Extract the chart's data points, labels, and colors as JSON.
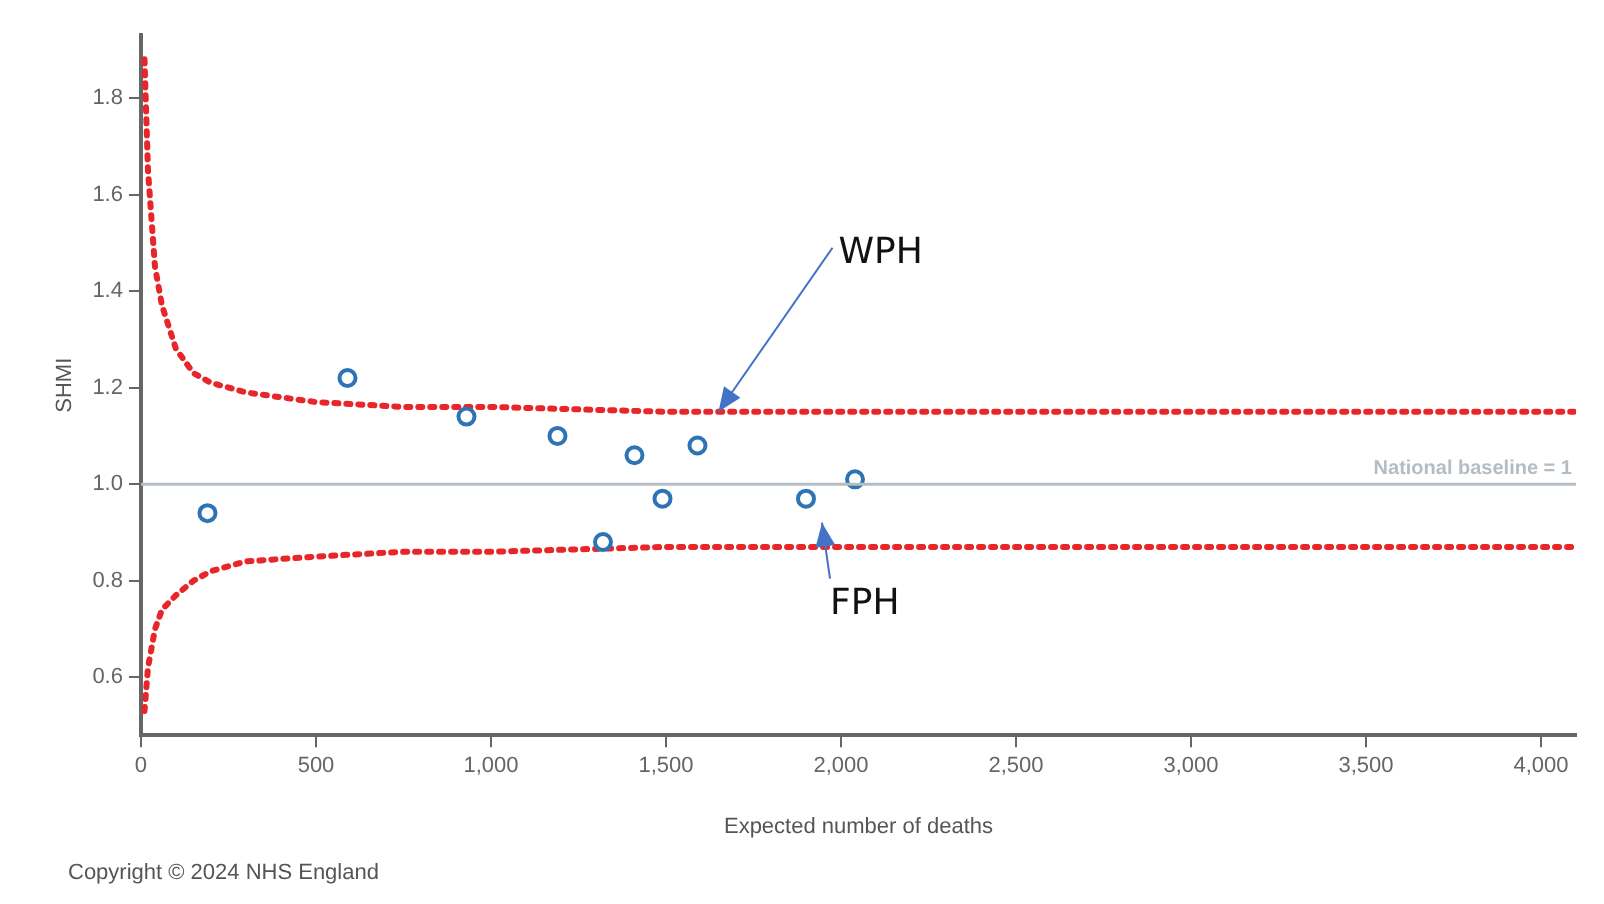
{
  "chart_data": {
    "type": "scatter",
    "xlabel": "Expected number of deaths",
    "ylabel": "SHMI",
    "xlim": [
      0,
      4100
    ],
    "ylim": [
      0.48,
      1.93
    ],
    "xticks": [
      0,
      500,
      {
        "value": 1000,
        "label": "1,000"
      },
      {
        "value": 1500,
        "label": "1,500"
      },
      {
        "value": 2000,
        "label": "2,000"
      },
      {
        "value": 2500,
        "label": "2,500"
      },
      {
        "value": 3000,
        "label": "3,000"
      },
      {
        "value": 3500,
        "label": "3,500"
      },
      {
        "value": 4000,
        "label": "4,000"
      }
    ],
    "yticks": [
      0.6,
      0.8,
      {
        "value": 1,
        "label": "1.0"
      },
      1.2,
      1.4,
      1.6,
      1.8
    ],
    "grid": false,
    "legend": false,
    "series": [
      {
        "type": "scatter",
        "marker": "circle",
        "color": "#2e74b5",
        "x": [
          190,
          590,
          930,
          1190,
          1410,
          1320,
          1490,
          1590,
          1900,
          2040
        ],
        "values": [
          0.94,
          1.22,
          1.14,
          1.1,
          1.06,
          0.88,
          0.97,
          1.08,
          0.97,
          1.01
        ]
      },
      {
        "type": "line",
        "line_style": "dotted",
        "color": "#e8262a",
        "x": [
          10,
          20,
          40,
          60,
          100,
          150,
          200,
          300,
          500,
          750,
          1000,
          1500,
          2000,
          3000,
          4100
        ],
        "values": [
          1.88,
          1.65,
          1.45,
          1.37,
          1.28,
          1.23,
          1.21,
          1.19,
          1.17,
          1.16,
          1.16,
          1.15,
          1.15,
          1.15,
          1.15
        ]
      },
      {
        "type": "line",
        "line_style": "dotted",
        "color": "#e8262a",
        "x": [
          10,
          20,
          40,
          60,
          100,
          150,
          200,
          300,
          500,
          750,
          1000,
          1500,
          2000,
          3000,
          4100
        ],
        "values": [
          0.53,
          0.62,
          0.7,
          0.74,
          0.77,
          0.8,
          0.82,
          0.84,
          0.85,
          0.86,
          0.86,
          0.87,
          0.87,
          0.87,
          0.87
        ]
      }
    ],
    "ref_lines": [
      {
        "axis": "y",
        "value": 1,
        "label": "National baseline = 1",
        "color": "#b4bcc4"
      }
    ],
    "annotations": [
      {
        "text": "WPH",
        "x": 1650,
        "y": 1.15
      },
      {
        "text": "FPH",
        "x": 1900,
        "y": 0.97
      },
      "Copyright © 2024 NHS England"
    ]
  }
}
